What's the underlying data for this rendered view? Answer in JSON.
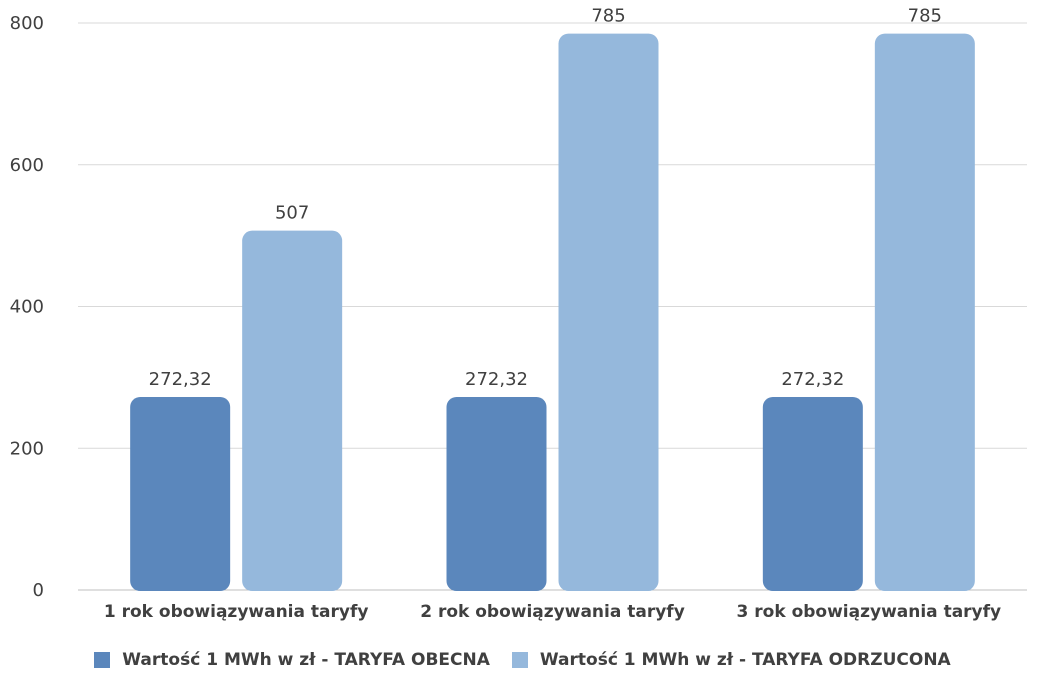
{
  "chart_data": {
    "type": "bar",
    "title": "",
    "xlabel": "",
    "ylabel": "",
    "ylim": [
      0,
      800
    ],
    "yticks": [
      0,
      200,
      400,
      600,
      800
    ],
    "grid": true,
    "legend_position": "bottom",
    "categories": [
      "1 rok obowiązywania taryfy",
      "2 rok obowiązywania taryfy",
      "3 rok obowiązywania taryfy"
    ],
    "series": [
      {
        "name": "Wartość 1 MWh w zł - TARYFA OBECNA",
        "color": "#5b87bc",
        "values": [
          272.32,
          272.32,
          272.32
        ],
        "labels": [
          "272,32",
          "272,32",
          "272,32"
        ]
      },
      {
        "name": "Wartość 1 MWh w zł - TARYFA ODRZUCONA",
        "color": "#95b8dc",
        "values": [
          507,
          785,
          785
        ],
        "labels": [
          "507",
          "785",
          "785"
        ]
      }
    ]
  }
}
